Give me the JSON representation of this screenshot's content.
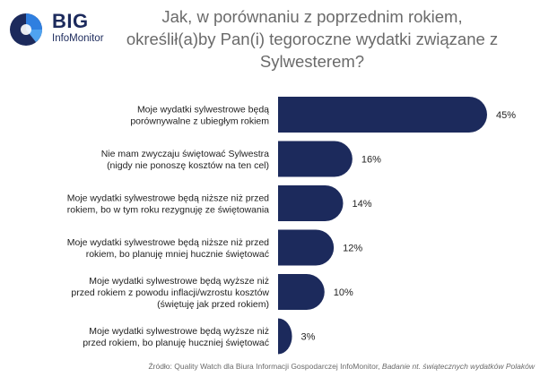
{
  "logo": {
    "big": "BIG",
    "sub": "InfoMonitor"
  },
  "title_lines": [
    "Jak, w porównaniu z poprzednim rokiem,",
    "określił(a)by Pan(i) tegoroczne wydatki związane z",
    "Sylwesterem?"
  ],
  "colors": {
    "bar": "#1c2a5c",
    "text": "#222222",
    "muted": "#6a6a6a"
  },
  "source": {
    "prefix": "Źródło: Quality Watch dla Biura Informacji Gospodarczej InfoMonitor, ",
    "italic": "Badanie nt. świątecznych wydatków Polaków"
  },
  "chart_data": {
    "type": "bar",
    "orientation": "horizontal",
    "categories": [
      [
        "Moje wydatki sylwestrowe będą",
        "porównywalne z ubiegłym rokiem"
      ],
      [
        "Nie mam zwyczaju świętować Sylwestra",
        "(nigdy nie ponoszę kosztów na ten cel)"
      ],
      [
        "Moje wydatki sylwestrowe będą niższe niż przed",
        "rokiem, bo w tym roku rezygnuję ze świętowania"
      ],
      [
        "Moje wydatki sylwestrowe będą niższe niż przed",
        "rokiem, bo planuję mniej hucznie świętować"
      ],
      [
        "Moje wydatki sylwestrowe będą wyższe niż",
        "przed rokiem z powodu inflacji/wzrostu kosztów",
        "(świętuję jak przed rokiem)"
      ],
      [
        "Moje wydatki sylwestrowe będą wyższe niż",
        "przed rokiem, bo planuję huczniej świętować"
      ]
    ],
    "values": [
      45,
      16,
      14,
      12,
      10,
      3
    ],
    "value_labels": [
      "45%",
      "16%",
      "14%",
      "12%",
      "10%",
      "3%"
    ],
    "unit": "%",
    "xlim": [
      0,
      45
    ]
  }
}
